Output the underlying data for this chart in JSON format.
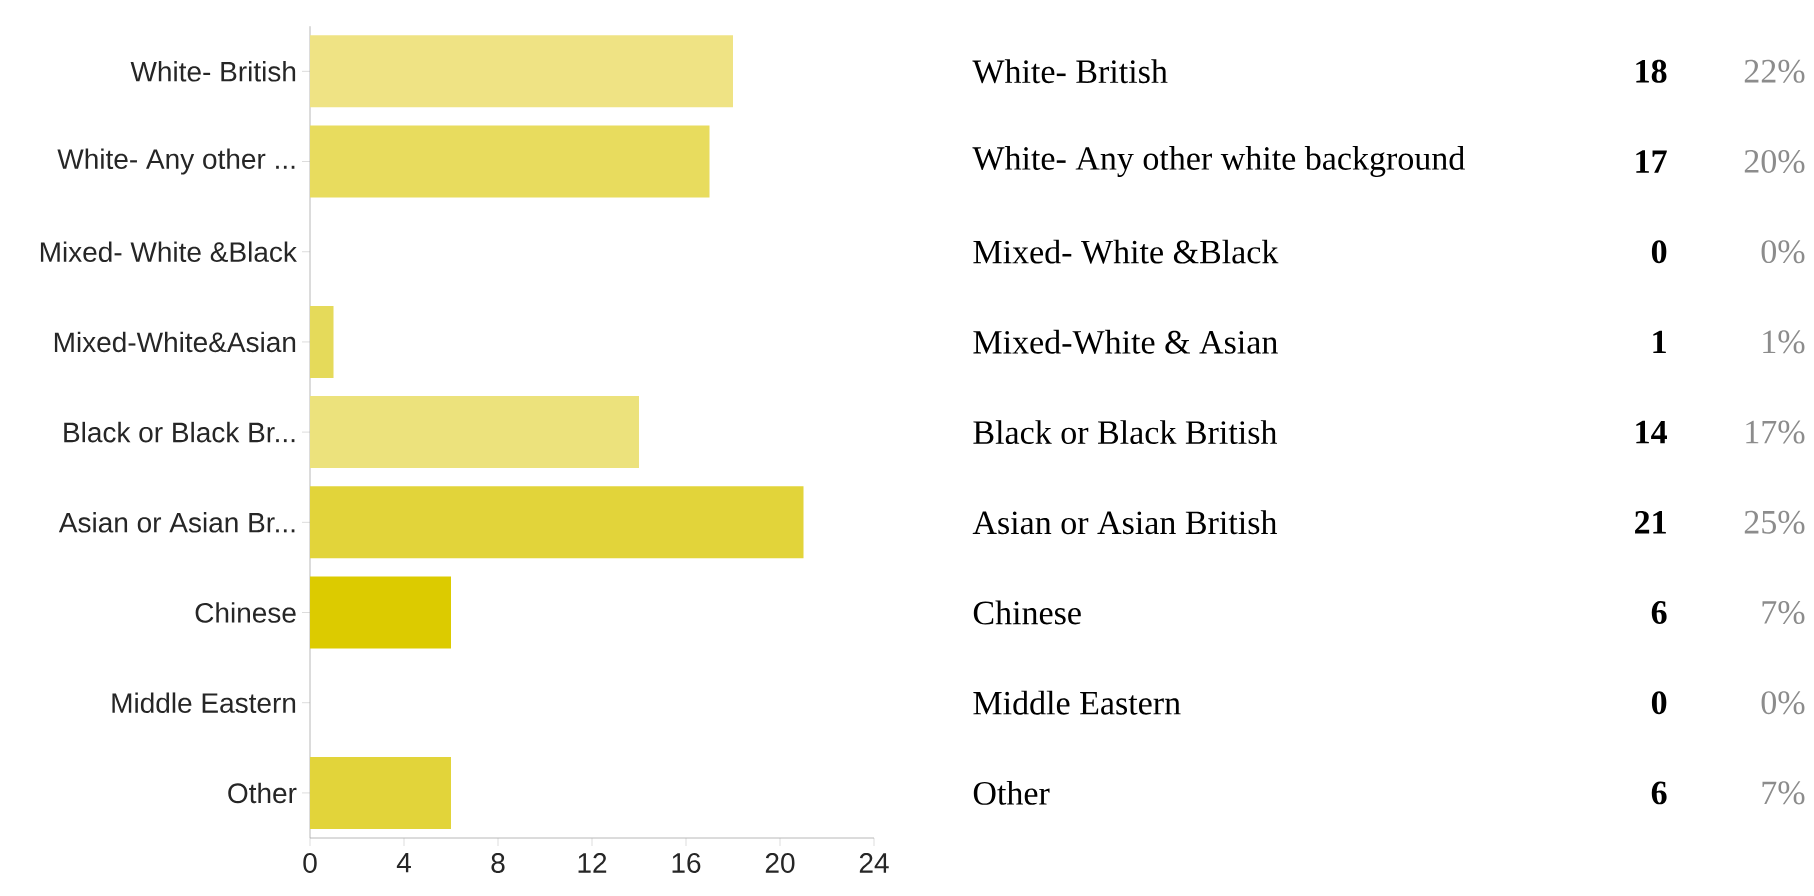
{
  "chart_data": [
    {
      "type": "bar",
      "orientation": "horizontal",
      "categories": [
        "White- British",
        "White- Any other ...",
        "Mixed- White &Black",
        "Mixed-White&Asian",
        "Black or Black Br...",
        "Asian or Asian Br...",
        "Chinese",
        "Middle Eastern",
        "Other"
      ],
      "values": [
        18,
        17,
        0,
        1,
        14,
        21,
        6,
        0,
        6
      ],
      "colors": [
        "#efe384",
        "#e8dc5e",
        "#e6da56",
        "#e5da5a",
        "#ece27c",
        "#e2d43a",
        "#dccb00",
        "#e2d63c",
        "#e2d43a"
      ],
      "xlim": [
        0,
        24
      ],
      "xticks": [
        0,
        4,
        8,
        12,
        16,
        20,
        24
      ]
    },
    {
      "type": "other",
      "categories": [
        "White- British",
        "White- Any other white background",
        "Mixed- White &Black",
        "Mixed-White & Asian",
        "Black or Black British",
        "Asian or Asian British",
        "Chinese",
        "Middle Eastern",
        "Other"
      ],
      "values": [
        18,
        17,
        0,
        1,
        14,
        21,
        6,
        0,
        6
      ],
      "data_labels": true,
      "annotations": [
        "22%",
        "20%",
        "0%",
        "1%",
        "17%",
        "25%",
        "7%",
        "0%",
        "7%"
      ]
    }
  ]
}
